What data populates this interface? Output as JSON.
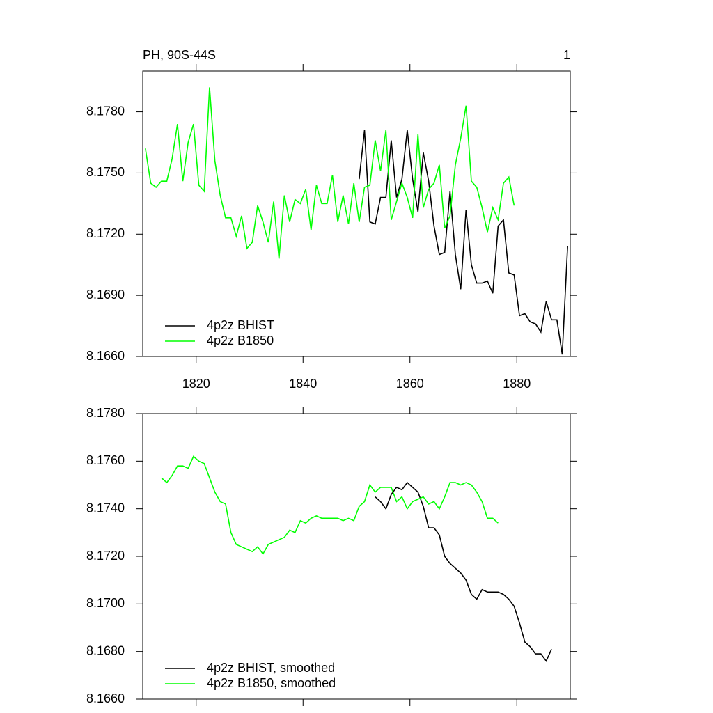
{
  "chart_data": [
    {
      "type": "line",
      "title": "PH, 90S-44S",
      "annotations": [
        "1"
      ],
      "xlim": [
        1810,
        1890
      ],
      "xticks": [
        1820,
        1840,
        1860,
        1880
      ],
      "ylim": [
        8.166,
        8.18
      ],
      "yticks": [
        {
          "value": 8.166,
          "label": "8.1660"
        },
        {
          "value": 8.169,
          "label": "8.1690"
        },
        {
          "value": 8.172,
          "label": "8.1720"
        },
        {
          "value": 8.175,
          "label": "8.1750"
        },
        {
          "value": 8.178,
          "label": "8.1780"
        }
      ],
      "legend": "bottom left",
      "series": [
        {
          "name": "4p2z BHIST",
          "color": "#000000",
          "x": [
            1850.5,
            1851.5,
            1852.5,
            1853.5,
            1854.5,
            1855.5,
            1856.5,
            1857.5,
            1858.5,
            1859.5,
            1860.5,
            1861.5,
            1862.5,
            1863.5,
            1864.5,
            1865.5,
            1866.5,
            1867.5,
            1868.5,
            1869.5,
            1870.5,
            1871.5,
            1872.5,
            1873.5,
            1874.5,
            1875.5,
            1876.5,
            1877.5,
            1878.5,
            1879.5,
            1880.5,
            1881.5,
            1882.5,
            1883.5,
            1884.5,
            1885.5,
            1886.5,
            1887.5,
            1888.5,
            1889.5
          ],
          "values": [
            8.1747,
            8.1771,
            8.1726,
            8.1725,
            8.1738,
            8.1738,
            8.1766,
            8.1738,
            8.1747,
            8.1771,
            8.1747,
            8.1731,
            8.176,
            8.1746,
            8.1724,
            8.171,
            8.1711,
            8.1741,
            8.171,
            8.1693,
            8.1732,
            8.1705,
            8.1696,
            8.1696,
            8.1697,
            8.1691,
            8.1724,
            8.1727,
            8.1701,
            8.17,
            8.168,
            8.1681,
            8.1677,
            8.1676,
            8.1672,
            8.1687,
            8.1678,
            8.1678,
            8.1661,
            8.1714
          ]
        },
        {
          "name": "4p2z B1850",
          "color": "#00ff00",
          "x": [
            1810.5,
            1811.5,
            1812.5,
            1813.5,
            1814.5,
            1815.5,
            1816.5,
            1817.5,
            1818.5,
            1819.5,
            1820.5,
            1821.5,
            1822.5,
            1823.5,
            1824.5,
            1825.5,
            1826.5,
            1827.5,
            1828.5,
            1829.5,
            1830.5,
            1831.5,
            1832.5,
            1833.5,
            1834.5,
            1835.5,
            1836.5,
            1837.5,
            1838.5,
            1839.5,
            1840.5,
            1841.5,
            1842.5,
            1843.5,
            1844.5,
            1845.5,
            1846.5,
            1847.5,
            1848.5,
            1849.5,
            1850.5,
            1851.5,
            1852.5,
            1853.5,
            1854.5,
            1855.5,
            1856.5,
            1857.5,
            1858.5,
            1859.5,
            1860.5,
            1861.5,
            1862.5,
            1863.5,
            1864.5,
            1865.5,
            1866.5,
            1867.5,
            1868.5,
            1869.5,
            1870.5,
            1871.5,
            1872.5,
            1873.5,
            1874.5,
            1875.5,
            1876.5,
            1877.5,
            1878.5,
            1879.5
          ],
          "values": [
            8.1762,
            8.1745,
            8.1743,
            8.1746,
            8.1746,
            8.1757,
            8.1774,
            8.1746,
            8.1765,
            8.1774,
            8.1744,
            8.1741,
            8.1792,
            8.1756,
            8.1739,
            8.1728,
            8.1728,
            8.1719,
            8.1729,
            8.1713,
            8.1716,
            8.1734,
            8.1726,
            8.1716,
            8.1736,
            8.1708,
            8.1739,
            8.1726,
            8.1737,
            8.1735,
            8.1742,
            8.1722,
            8.1744,
            8.1735,
            8.1735,
            8.1749,
            8.1726,
            8.1739,
            8.1725,
            8.1745,
            8.1726,
            8.1743,
            8.1744,
            8.1766,
            8.1751,
            8.1771,
            8.1727,
            8.1736,
            8.1745,
            8.1738,
            8.1728,
            8.1769,
            8.1733,
            8.1742,
            8.1745,
            8.1754,
            8.1723,
            8.1729,
            8.1754,
            8.1767,
            8.1783,
            8.1746,
            8.1743,
            8.1733,
            8.1721,
            8.1733,
            8.1727,
            8.1745,
            8.1748,
            8.1734
          ]
        }
      ]
    },
    {
      "type": "line",
      "xlim": [
        1810,
        1890
      ],
      "ylim": [
        8.166,
        8.178
      ],
      "yticks": [
        {
          "value": 8.166,
          "label": "8.1660"
        },
        {
          "value": 8.168,
          "label": "8.1680"
        },
        {
          "value": 8.17,
          "label": "8.1700"
        },
        {
          "value": 8.172,
          "label": "8.1720"
        },
        {
          "value": 8.174,
          "label": "8.1740"
        },
        {
          "value": 8.176,
          "label": "8.1760"
        },
        {
          "value": 8.178,
          "label": "8.1780"
        }
      ],
      "legend": "bottom left",
      "series": [
        {
          "name": "4p2z BHIST, smoothed",
          "color": "#000000",
          "x": [
            1853.5,
            1854.5,
            1855.5,
            1856.5,
            1857.5,
            1858.5,
            1859.5,
            1860.5,
            1861.5,
            1862.5,
            1863.5,
            1864.5,
            1865.5,
            1866.5,
            1867.5,
            1868.5,
            1869.5,
            1870.5,
            1871.5,
            1872.5,
            1873.5,
            1874.5,
            1875.5,
            1876.5,
            1877.5,
            1878.5,
            1879.5,
            1880.5,
            1881.5,
            1882.5,
            1883.5,
            1884.5,
            1885.5,
            1886.5
          ],
          "values": [
            8.1745,
            8.1743,
            8.174,
            8.1746,
            8.1749,
            8.1748,
            8.1751,
            8.1749,
            8.1747,
            8.1741,
            8.1732,
            8.1732,
            8.1729,
            8.172,
            8.1717,
            8.1715,
            8.1713,
            8.171,
            8.1704,
            8.1702,
            8.1706,
            8.1705,
            8.1705,
            8.1705,
            8.1704,
            8.1702,
            8.1699,
            8.1692,
            8.1684,
            8.1682,
            8.1679,
            8.1679,
            8.1676,
            8.1681
          ]
        },
        {
          "name": "4p2z B1850, smoothed",
          "color": "#00ff00",
          "x": [
            1813.5,
            1814.5,
            1815.5,
            1816.5,
            1817.5,
            1818.5,
            1819.5,
            1820.5,
            1821.5,
            1822.5,
            1823.5,
            1824.5,
            1825.5,
            1826.5,
            1827.5,
            1828.5,
            1829.5,
            1830.5,
            1831.5,
            1832.5,
            1833.5,
            1834.5,
            1835.5,
            1836.5,
            1837.5,
            1838.5,
            1839.5,
            1840.5,
            1841.5,
            1842.5,
            1843.5,
            1844.5,
            1845.5,
            1846.5,
            1847.5,
            1848.5,
            1849.5,
            1850.5,
            1851.5,
            1852.5,
            1853.5,
            1854.5,
            1855.5,
            1856.5,
            1857.5,
            1858.5,
            1859.5,
            1860.5,
            1861.5,
            1862.5,
            1863.5,
            1864.5,
            1865.5,
            1866.5,
            1867.5,
            1868.5,
            1869.5,
            1870.5,
            1871.5,
            1872.5,
            1873.5,
            1874.5,
            1875.5,
            1876.5
          ],
          "values": [
            8.1753,
            8.1751,
            8.1754,
            8.1758,
            8.1758,
            8.1757,
            8.1762,
            8.176,
            8.1759,
            8.1753,
            8.1747,
            8.1743,
            8.1742,
            8.173,
            8.1725,
            8.1724,
            8.1723,
            8.1722,
            8.1724,
            8.1721,
            8.1725,
            8.1726,
            8.1727,
            8.1728,
            8.1731,
            8.173,
            8.1735,
            8.1734,
            8.1736,
            8.1737,
            8.1736,
            8.1736,
            8.1736,
            8.1736,
            8.1735,
            8.1736,
            8.1735,
            8.1741,
            8.1743,
            8.175,
            8.1747,
            8.1749,
            8.1749,
            8.1749,
            8.1743,
            8.1745,
            8.174,
            8.1743,
            8.1744,
            8.1745,
            8.1742,
            8.1743,
            8.174,
            8.1745,
            8.1751,
            8.1751,
            8.175,
            8.1751,
            8.175,
            8.1747,
            8.1743,
            8.1736,
            8.1736,
            8.1734
          ]
        }
      ]
    }
  ]
}
